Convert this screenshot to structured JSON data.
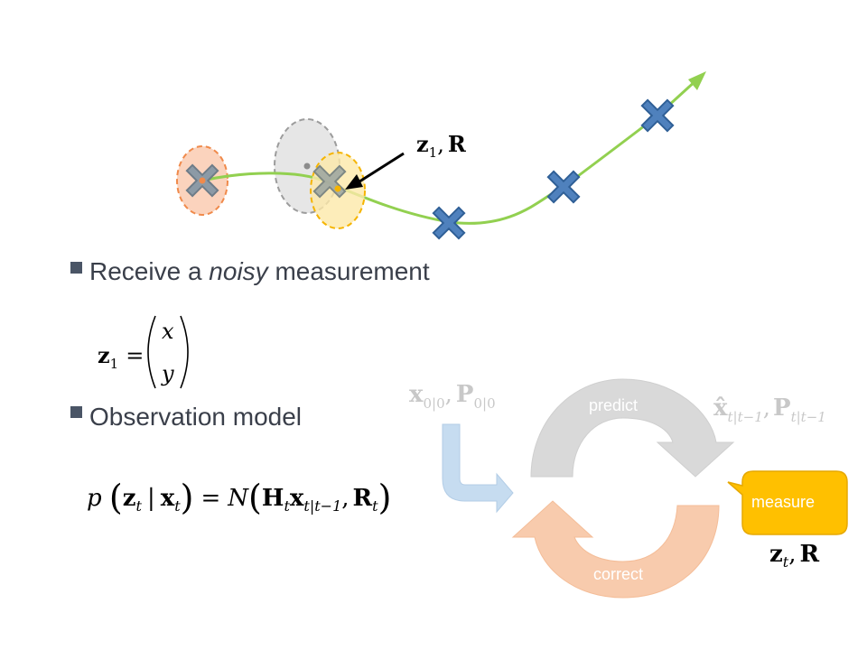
{
  "trajectory": {
    "measurement_label_bold": "z",
    "measurement_label_sub": "1",
    "measurement_label_sep": ",",
    "measurement_label_R": "R"
  },
  "bullets": [
    {
      "prefix": "Receive a ",
      "emphasis": "noisy",
      "suffix": " measurement"
    },
    {
      "prefix": "Observation model",
      "emphasis": "",
      "suffix": ""
    }
  ],
  "equation1": {
    "lhs_bold": "z",
    "lhs_sub": "1",
    "equals": "=",
    "vector_top": "x",
    "vector_bottom": "y"
  },
  "equation2": {
    "p": "p",
    "z": "z",
    "t": "t",
    "given": "|",
    "x": "x",
    "equals": "=",
    "N": "N",
    "H": "H",
    "sub_pred": "t|t−1",
    "comma": ",",
    "R": "R"
  },
  "cycle": {
    "predict": "predict",
    "correct": "correct",
    "measure": "measure",
    "init_x": "x",
    "init_sub": "0|0",
    "init_P": "P",
    "pred_x": "x̂",
    "pred_sub": "t|t−1",
    "pred_P": "P",
    "meas_z": "z",
    "meas_t": "t",
    "meas_sep": ",",
    "meas_R": "R"
  },
  "colors": {
    "trajectory": "#92d050",
    "cross": "#4f81bd",
    "cross_gray": "#8c9aa6",
    "orange_ellipse": "#fbd3bd",
    "gray_ellipse": "#e6e6e6",
    "yellow_ellipse": "#fde9a9",
    "measure_box": "#ffc000",
    "predict_arrow": "#d9d9d9",
    "correct_arrow": "#f8cbad",
    "init_arrow": "#c6dcf0",
    "bullet_text": "#3a3f4a",
    "bullet_square": "#4a5566"
  }
}
